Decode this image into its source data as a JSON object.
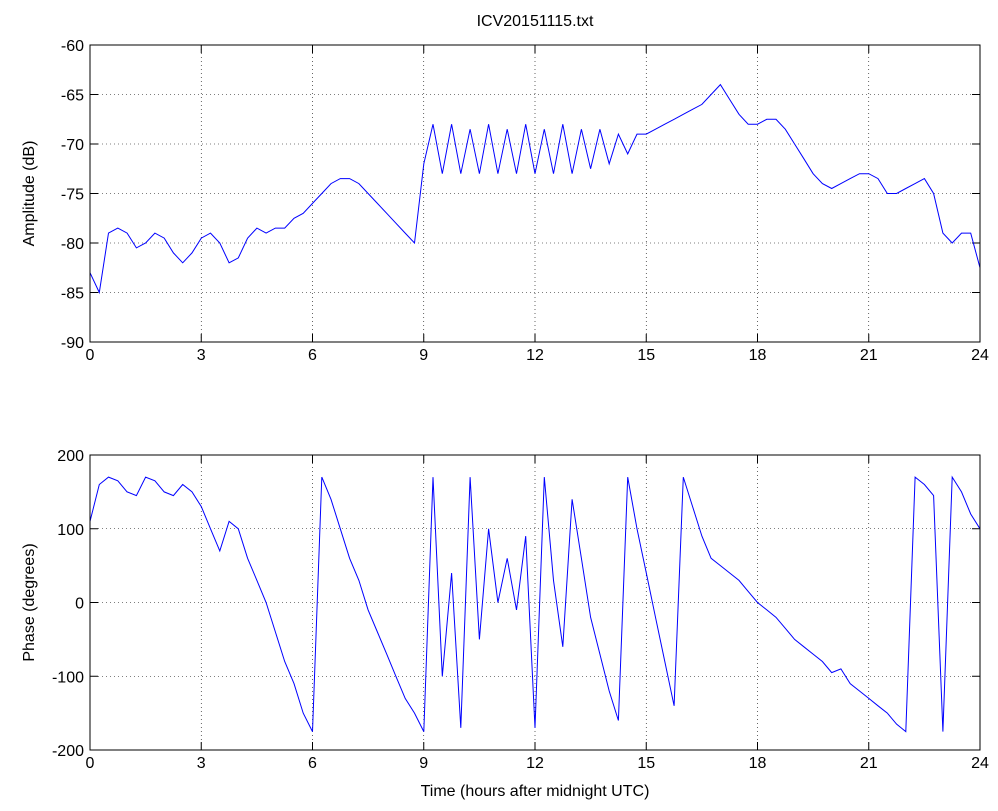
{
  "chart_data": [
    {
      "type": "line",
      "title": "ICV20151115.txt",
      "y_label": "Amplitude (dB)",
      "x": [
        0,
        0.25,
        0.5,
        0.75,
        1,
        1.25,
        1.5,
        1.75,
        2,
        2.25,
        2.5,
        2.75,
        3,
        3.25,
        3.5,
        3.75,
        4,
        4.25,
        4.5,
        4.75,
        5,
        5.25,
        5.5,
        5.75,
        6,
        6.25,
        6.5,
        6.75,
        7,
        7.25,
        7.5,
        7.75,
        8,
        8.25,
        8.5,
        8.75,
        9,
        9.25,
        9.5,
        9.75,
        10,
        10.25,
        10.5,
        10.75,
        11,
        11.25,
        11.5,
        11.75,
        12,
        12.25,
        12.5,
        12.75,
        13,
        13.25,
        13.5,
        13.75,
        14,
        14.25,
        14.5,
        14.75,
        15,
        15.25,
        15.5,
        15.75,
        16,
        16.25,
        16.5,
        16.75,
        17,
        17.25,
        17.5,
        17.75,
        18,
        18.25,
        18.5,
        18.75,
        19,
        19.25,
        19.5,
        19.75,
        20,
        20.25,
        20.5,
        20.75,
        21,
        21.25,
        21.5,
        21.75,
        22,
        22.25,
        22.5,
        22.75,
        23,
        23.25,
        23.5,
        23.75,
        24
      ],
      "series": [
        {
          "color": "#0000ff",
          "values": [
            -83,
            -85,
            -79,
            -78.5,
            -79,
            -80.5,
            -80,
            -79,
            -79.5,
            -81,
            -82,
            -81,
            -79.5,
            -79,
            -80,
            -82,
            -81.5,
            -79.5,
            -78.5,
            -79,
            -78.5,
            -78.5,
            -77.5,
            -77,
            -76,
            -75,
            -74,
            -73.5,
            -73.5,
            -74,
            -75,
            -76,
            -77,
            -78,
            -79,
            -80,
            -72,
            -68,
            -73,
            -68,
            -73,
            -68.5,
            -73,
            -68,
            -73,
            -68.5,
            -73,
            -68,
            -73,
            -68.5,
            -73,
            -68,
            -73,
            -68.5,
            -72.5,
            -68.5,
            -72,
            -69,
            -71,
            -69,
            -69,
            -68.5,
            -68,
            -67.5,
            -67,
            -66.5,
            -66,
            -65,
            -64,
            -65.5,
            -67,
            -68,
            -68,
            -67.5,
            -67.5,
            -68.5,
            -70,
            -71.5,
            -73,
            -74,
            -74.5,
            -74,
            -73.5,
            -73,
            -73,
            -73.5,
            -75,
            -75,
            -74.5,
            -74,
            -73.5,
            -75,
            -79,
            -80,
            -79,
            -79,
            -82.5
          ]
        }
      ],
      "xlim": [
        0,
        24
      ],
      "ylim": [
        -90,
        -60
      ],
      "xticks": [
        0,
        3,
        6,
        9,
        12,
        15,
        18,
        21,
        24
      ],
      "yticks": [
        -90,
        -85,
        -80,
        -75,
        -70,
        -65,
        -60
      ],
      "grid": true
    },
    {
      "type": "line",
      "x_label": "Time (hours after midnight UTC)",
      "y_label": "Phase (degrees)",
      "x": [
        0,
        0.25,
        0.5,
        0.75,
        1,
        1.25,
        1.5,
        1.75,
        2,
        2.25,
        2.5,
        2.75,
        3,
        3.25,
        3.5,
        3.75,
        4,
        4.25,
        4.5,
        4.75,
        5,
        5.25,
        5.5,
        5.75,
        6,
        6.25,
        6.5,
        6.75,
        7,
        7.25,
        7.5,
        7.75,
        8,
        8.25,
        8.5,
        8.75,
        9,
        9.25,
        9.5,
        9.75,
        10,
        10.25,
        10.5,
        10.75,
        11,
        11.25,
        11.5,
        11.75,
        12,
        12.25,
        12.5,
        12.75,
        13,
        13.25,
        13.5,
        13.75,
        14,
        14.25,
        14.5,
        14.75,
        15,
        15.25,
        15.5,
        15.75,
        16,
        16.25,
        16.5,
        16.75,
        17,
        17.25,
        17.5,
        17.75,
        18,
        18.25,
        18.5,
        18.75,
        19,
        19.25,
        19.5,
        19.75,
        20,
        20.25,
        20.5,
        20.75,
        21,
        21.25,
        21.5,
        21.75,
        22,
        22.25,
        22.5,
        22.75,
        23,
        23.25,
        23.5,
        23.75,
        24
      ],
      "series": [
        {
          "color": "#0000ff",
          "values": [
            110,
            160,
            170,
            165,
            150,
            145,
            170,
            165,
            150,
            145,
            160,
            150,
            130,
            100,
            70,
            110,
            100,
            60,
            30,
            0,
            -40,
            -80,
            -110,
            -150,
            -175,
            170,
            140,
            100,
            60,
            30,
            -10,
            -40,
            -70,
            -100,
            -130,
            -150,
            -175,
            170,
            -100,
            40,
            -170,
            170,
            -50,
            100,
            0,
            60,
            -10,
            90,
            -170,
            170,
            30,
            -60,
            140,
            60,
            -20,
            -70,
            -120,
            -160,
            170,
            100,
            40,
            -20,
            -80,
            -140,
            170,
            130,
            90,
            60,
            50,
            40,
            30,
            15,
            0,
            -10,
            -20,
            -35,
            -50,
            -60,
            -70,
            -80,
            -95,
            -90,
            -110,
            -120,
            -130,
            -140,
            -150,
            -165,
            -175,
            170,
            160,
            145,
            -175,
            170,
            150,
            120,
            100
          ]
        }
      ],
      "xlim": [
        0,
        24
      ],
      "ylim": [
        -200,
        200
      ],
      "xticks": [
        0,
        3,
        6,
        9,
        12,
        15,
        18,
        21,
        24
      ],
      "yticks": [
        -200,
        -100,
        0,
        100,
        200
      ],
      "grid": true
    }
  ]
}
